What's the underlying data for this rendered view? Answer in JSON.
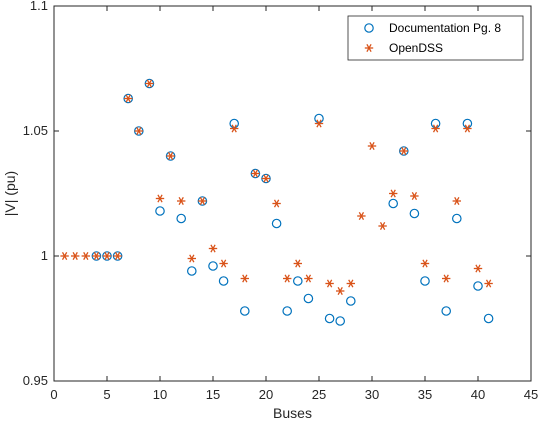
{
  "chart_data": {
    "type": "scatter",
    "title": "",
    "xlabel": "Buses",
    "ylabel": "|V| (pu)",
    "xlim": [
      0,
      45
    ],
    "ylim": [
      0.95,
      1.1
    ],
    "xticks": [
      "0",
      "5",
      "10",
      "15",
      "20",
      "25",
      "30",
      "35",
      "40",
      "45"
    ],
    "yticks": [
      "0.95",
      "1",
      "1.05",
      "1.1"
    ],
    "grid": false,
    "legend_position": "top-right",
    "series": [
      {
        "name": "Documentation Pg. 8",
        "marker": "circle",
        "color": "#0072BD",
        "x": [
          4,
          5,
          6,
          7,
          8,
          9,
          10,
          11,
          12,
          13,
          14,
          15,
          16,
          17,
          18,
          19,
          20,
          21,
          22,
          23,
          24,
          25,
          26,
          27,
          28,
          33,
          32,
          34,
          35,
          36,
          37,
          38,
          39,
          40,
          41
        ],
        "y": [
          1.0,
          1.0,
          1.0,
          1.063,
          1.05,
          1.069,
          1.018,
          1.04,
          1.015,
          0.994,
          1.022,
          0.996,
          0.99,
          1.053,
          0.978,
          1.033,
          1.031,
          1.013,
          0.978,
          0.99,
          0.983,
          1.055,
          0.975,
          0.974,
          0.982,
          1.042,
          1.021,
          1.017,
          0.99,
          1.053,
          0.978,
          1.015,
          1.053,
          0.988,
          0.975
        ]
      },
      {
        "name": "OpenDSS",
        "marker": "asterisk",
        "color": "#D95319",
        "x": [
          1,
          2,
          3,
          4,
          5,
          6,
          7,
          8,
          9,
          10,
          11,
          12,
          13,
          14,
          15,
          16,
          17,
          18,
          19,
          20,
          21,
          22,
          23,
          24,
          25,
          26,
          27,
          28,
          29,
          30,
          31,
          32,
          33,
          34,
          35,
          36,
          37,
          38,
          39,
          40,
          41
        ],
        "y": [
          1.0,
          1.0,
          1.0,
          1.0,
          1.0,
          1.0,
          1.063,
          1.05,
          1.069,
          1.023,
          1.04,
          1.022,
          0.999,
          1.022,
          1.003,
          0.997,
          1.051,
          0.991,
          1.033,
          1.031,
          1.021,
          0.991,
          0.997,
          0.991,
          1.053,
          0.989,
          0.986,
          0.989,
          1.016,
          1.044,
          1.012,
          1.025,
          1.042,
          1.024,
          0.997,
          1.051,
          0.991,
          1.022,
          1.051,
          0.995,
          0.989
        ]
      }
    ]
  }
}
